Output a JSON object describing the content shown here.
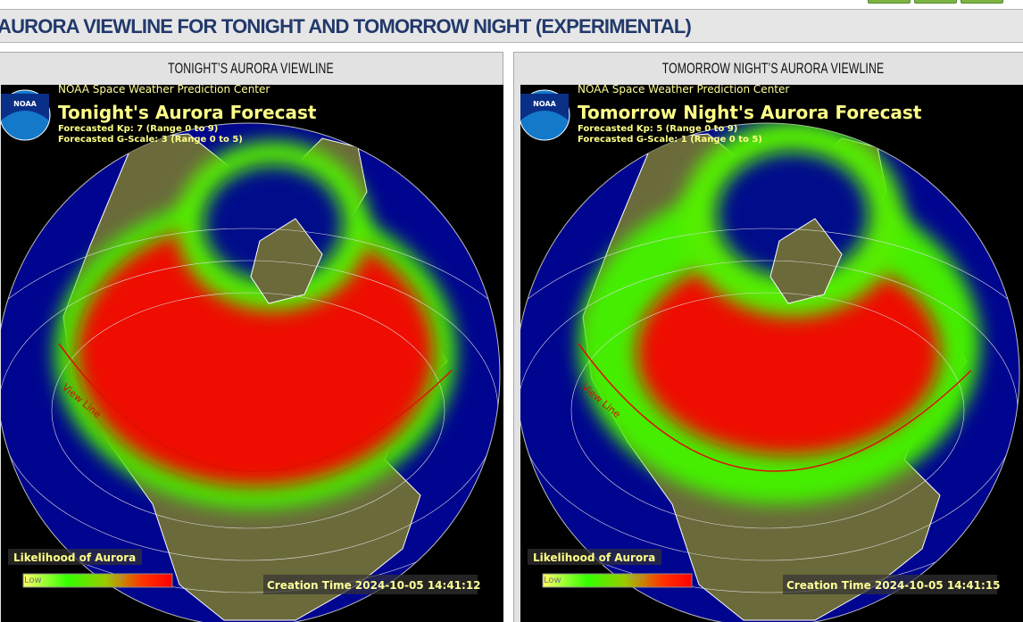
{
  "header": {
    "title": "AURORA VIEWLINE FOR TONIGHT AND TOMORROW NIGHT (EXPERIMENTAL)"
  },
  "panels": [
    {
      "heading": "TONIGHT’S AURORA VIEWLINE",
      "logo": "NOAA",
      "agency": "NOAA Space Weather Prediction Center",
      "title": "Tonight's Aurora Forecast",
      "kp": "Forecasted Kp: 7 (Range 0 to 9)",
      "gscale": "Forecasted G-Scale: 3 (Range 0 to 5)",
      "view_line": "View Line",
      "legend_title": "Likelihood of Aurora",
      "legend_low": "Low",
      "legend_high": "High",
      "creation_time": "Creation Time 2024-10-05 14:41:12"
    },
    {
      "heading": "TOMORROW NIGHT’S AURORA VIEWLINE",
      "logo": "NOAA",
      "agency": "NOAA Space Weather Prediction Center",
      "title": "Tomorrow Night's Aurora Forecast",
      "kp": "Forecasted Kp: 5 (Range 0 to 9)",
      "gscale": "Forecasted G-Scale: 1 (Range 0 to 5)",
      "view_line": "View Line",
      "legend_title": "Likelihood of Aurora",
      "legend_low": "Low",
      "legend_high": "High",
      "creation_time": "Creation Time 2024-10-05 14:41:15"
    }
  ]
}
